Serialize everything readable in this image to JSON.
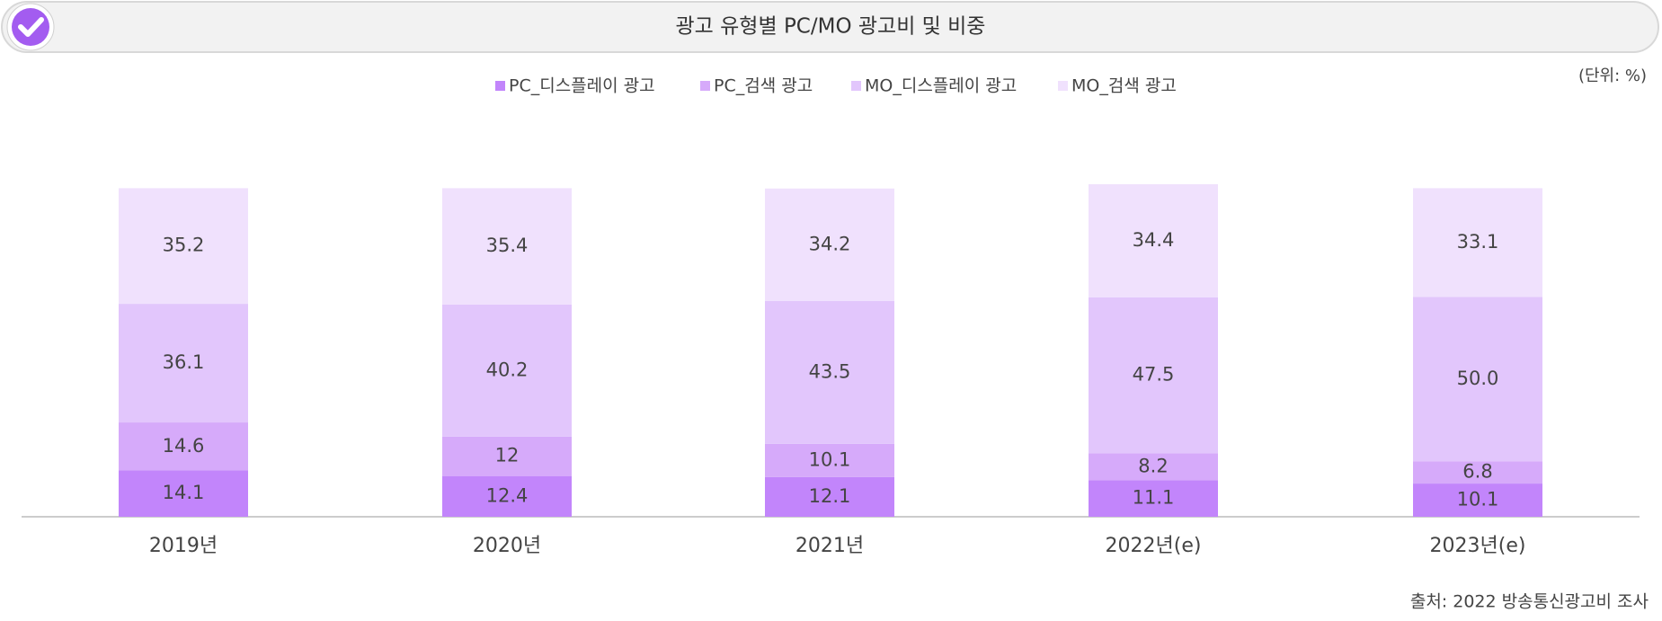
{
  "header": {
    "title": "광고 유형별 PC/MO 광고비 및 비중"
  },
  "chart_data": {
    "type": "stacked-bar",
    "unit_note": "(단위: %)",
    "source": "출처: 2022 방송통신광고비 조사",
    "categories": [
      "2019년",
      "2020년",
      "2021년",
      "2022년(e)",
      "2023년(e)"
    ],
    "series": [
      {
        "name": "PC_디스플레이 광고",
        "color": "#c285fb",
        "values": [
          14.1,
          12.4,
          12.1,
          11.1,
          10.1
        ]
      },
      {
        "name": "PC_검색 광고",
        "color": "#d6aafa",
        "values": [
          14.6,
          12.0,
          10.1,
          8.2,
          6.8
        ]
      },
      {
        "name": "MO_디스플레이 광고",
        "color": "#e2c6fc",
        "values": [
          36.1,
          40.2,
          43.5,
          47.5,
          50.0
        ],
        "value_labels": [
          "36.1",
          "40.2",
          "43.5",
          "47.5",
          "50.0"
        ]
      },
      {
        "name": "MO_검색 광고",
        "color": "#f0e1fd",
        "values": [
          35.2,
          35.4,
          34.2,
          34.4,
          33.1
        ]
      }
    ]
  }
}
